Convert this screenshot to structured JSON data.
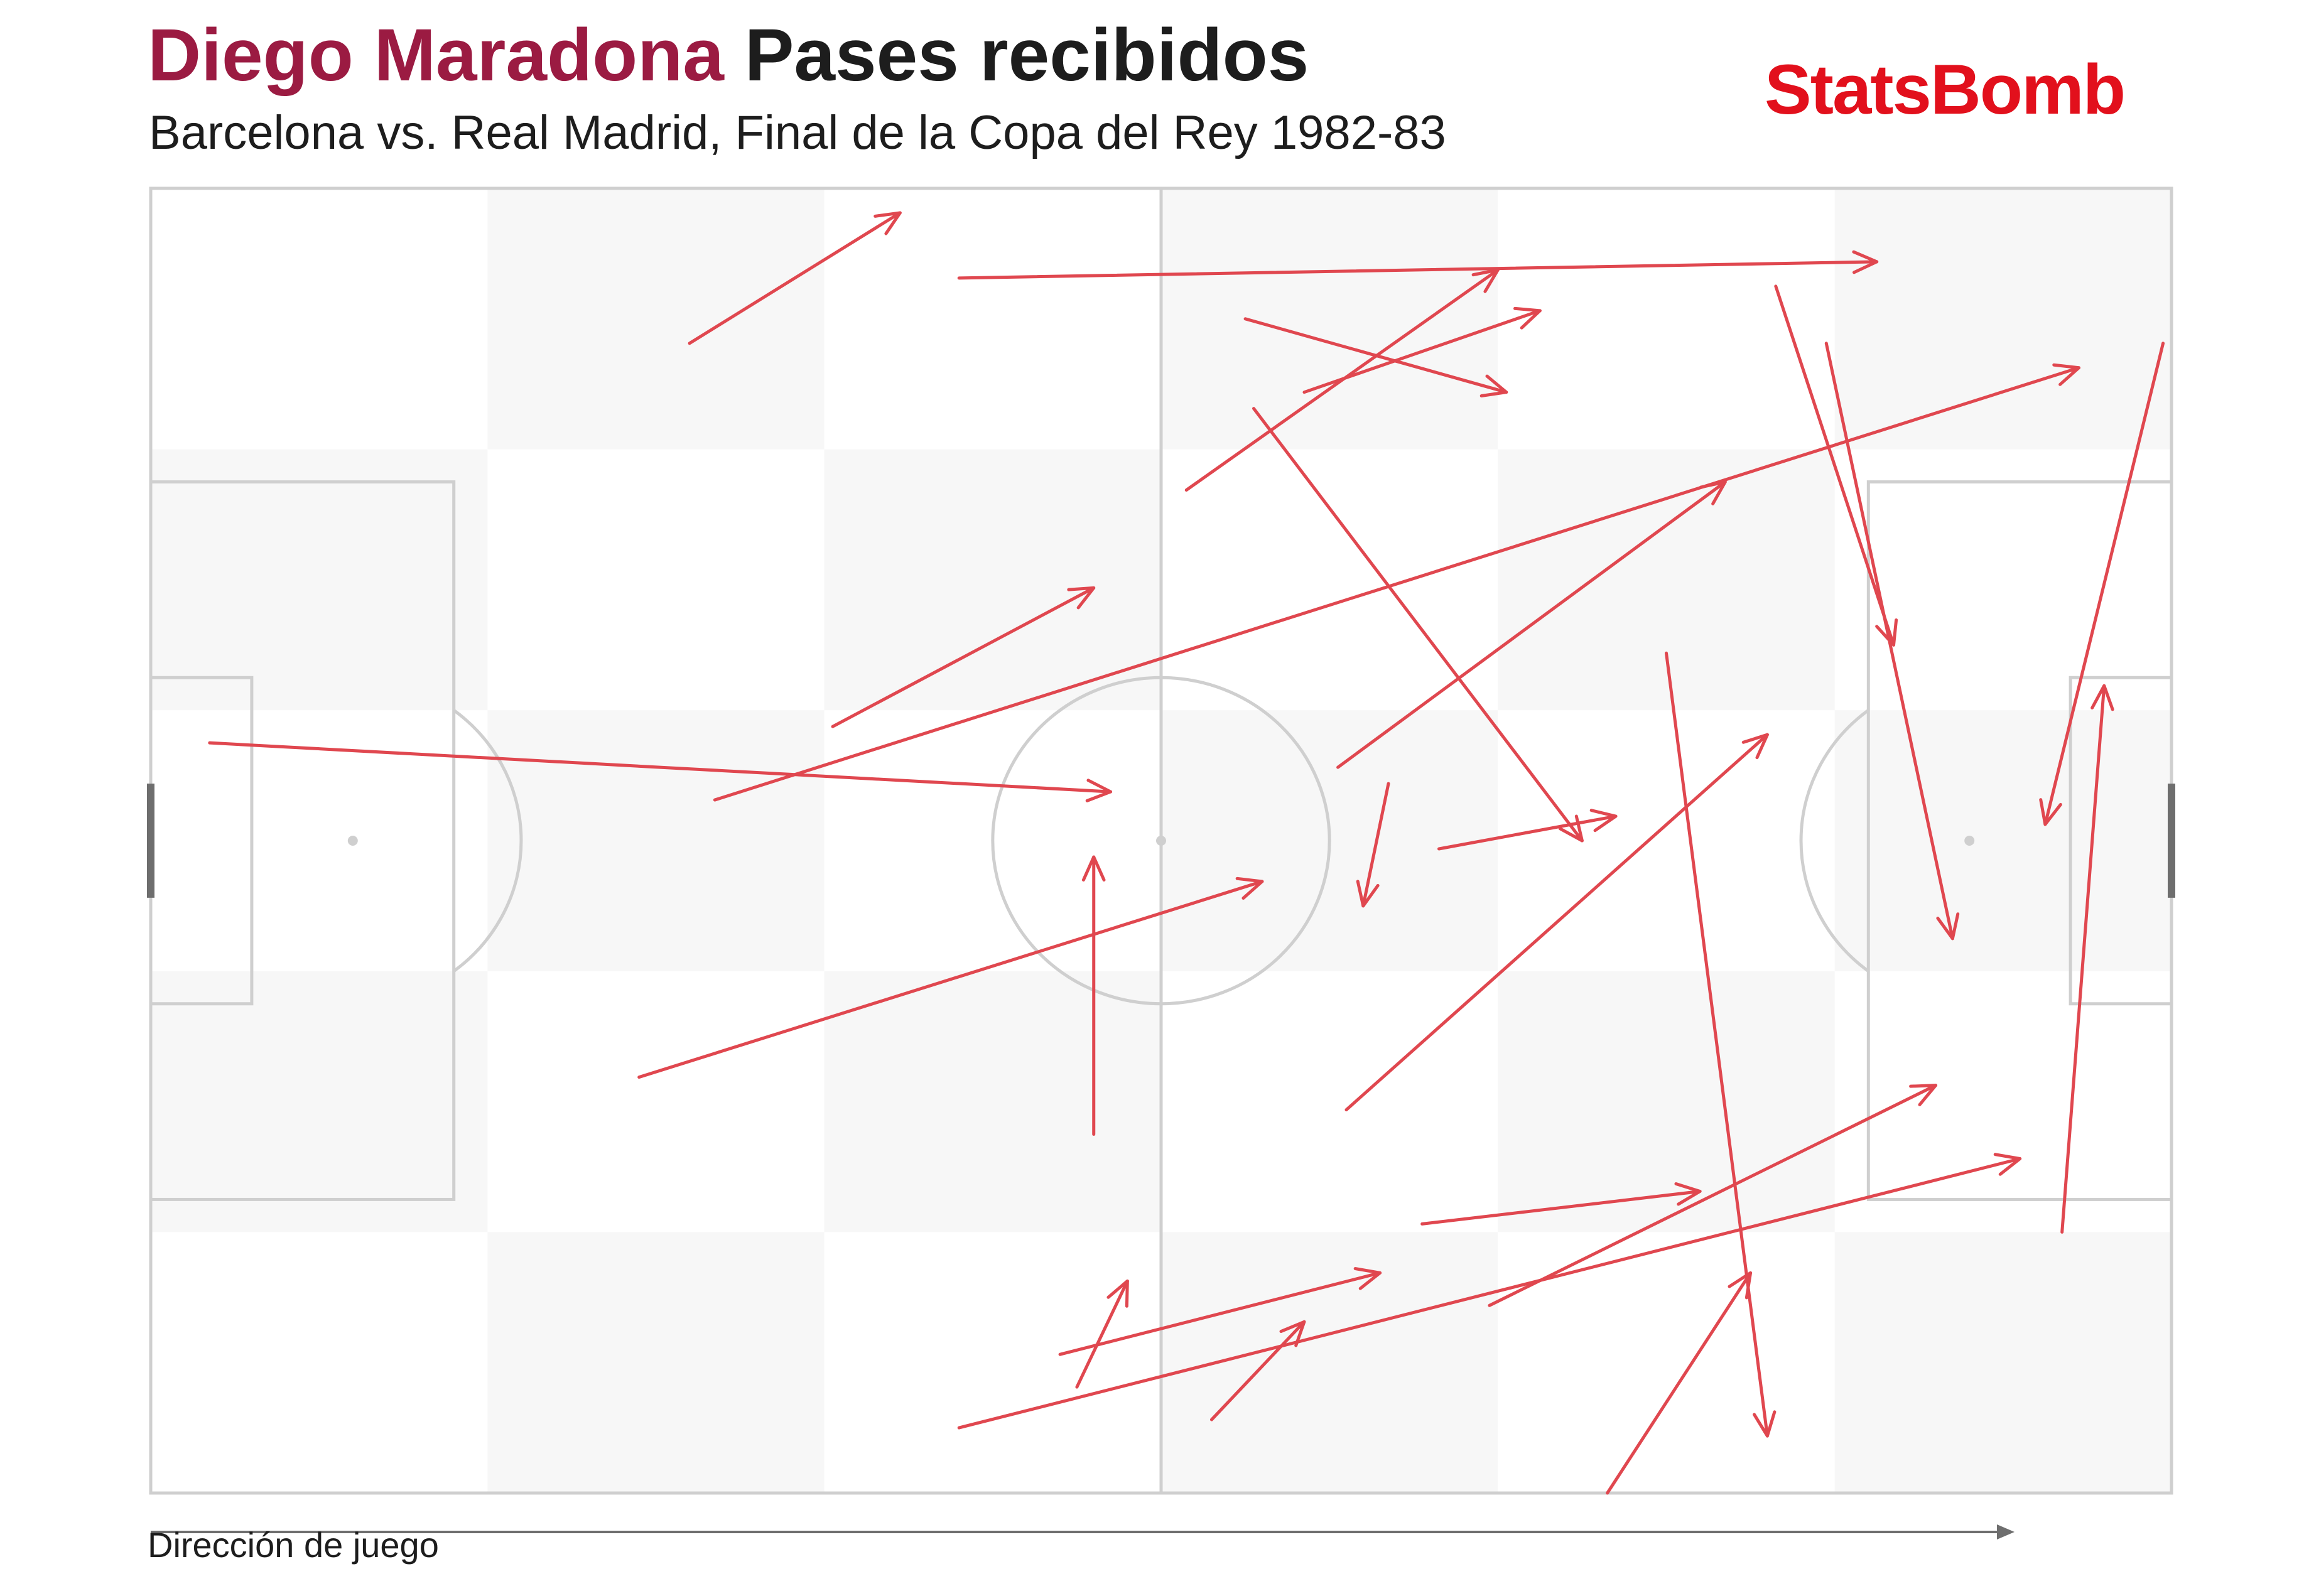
{
  "header": {
    "player_name": "Diego Maradona",
    "chart_title": "Pases recibidos",
    "subtitle": "Barcelona vs. Real Madrid, Final de la Copa del Rey 1982-83",
    "brand": "StatsBomb"
  },
  "footer": {
    "direction_label": "Dirección de juego"
  },
  "colors": {
    "player": "#9b1b42",
    "arrow": "#e0474f",
    "brand": "#e2101c",
    "pitch_lines": "#cfcfcf",
    "stripe": "#f7f7f7"
  },
  "chart_data": {
    "type": "pass-map",
    "pitch": {
      "length": 120,
      "width": 80,
      "attack_direction": "left-to-right"
    },
    "passes_received": [
      {
        "start": [
          32,
          9.5
        ],
        "end": [
          44.5,
          1.5
        ]
      },
      {
        "start": [
          48,
          5.5
        ],
        "end": [
          102.5,
          4.5
        ]
      },
      {
        "start": [
          40.5,
          33
        ],
        "end": [
          56,
          24.5
        ]
      },
      {
        "start": [
          3.5,
          34
        ],
        "end": [
          57,
          37
        ]
      },
      {
        "start": [
          33.5,
          37.5
        ],
        "end": [
          114.5,
          11
        ]
      },
      {
        "start": [
          65,
          8
        ],
        "end": [
          80.5,
          12.5
        ]
      },
      {
        "start": [
          68.5,
          12.5
        ],
        "end": [
          82.5,
          7.5
        ]
      },
      {
        "start": [
          61.5,
          18.5
        ],
        "end": [
          80,
          5
        ]
      },
      {
        "start": [
          65.5,
          13.5
        ],
        "end": [
          85,
          40
        ]
      },
      {
        "start": [
          70.5,
          35.5
        ],
        "end": [
          93.5,
          18
        ]
      },
      {
        "start": [
          96.5,
          6
        ],
        "end": [
          103.5,
          28
        ]
      },
      {
        "start": [
          99.5,
          9.5
        ],
        "end": [
          107,
          46
        ]
      },
      {
        "start": [
          119.5,
          9.5
        ],
        "end": [
          112.5,
          39
        ]
      },
      {
        "start": [
          73.5,
          36.5
        ],
        "end": [
          72,
          44
        ]
      },
      {
        "start": [
          76.5,
          40.5
        ],
        "end": [
          87,
          38.5
        ]
      },
      {
        "start": [
          56,
          58
        ],
        "end": [
          56,
          41
        ]
      },
      {
        "start": [
          29,
          54.5
        ],
        "end": [
          66,
          42.5
        ]
      },
      {
        "start": [
          71,
          56.5
        ],
        "end": [
          96,
          33.5
        ]
      },
      {
        "start": [
          90,
          28.5
        ],
        "end": [
          96,
          76.5
        ]
      },
      {
        "start": [
          113.5,
          64
        ],
        "end": [
          116,
          30.5
        ]
      },
      {
        "start": [
          75.5,
          63.5
        ],
        "end": [
          92,
          61.5
        ]
      },
      {
        "start": [
          79.5,
          68.5
        ],
        "end": [
          106,
          55
        ]
      },
      {
        "start": [
          48,
          76
        ],
        "end": [
          111,
          59.5
        ]
      },
      {
        "start": [
          54,
          71.5
        ],
        "end": [
          73,
          66.5
        ]
      },
      {
        "start": [
          55,
          73.5
        ],
        "end": [
          58,
          67
        ]
      },
      {
        "start": [
          63,
          75.5
        ],
        "end": [
          68.5,
          69.5
        ]
      },
      {
        "start": [
          86.5,
          80
        ],
        "end": [
          95,
          66.5
        ]
      }
    ]
  }
}
